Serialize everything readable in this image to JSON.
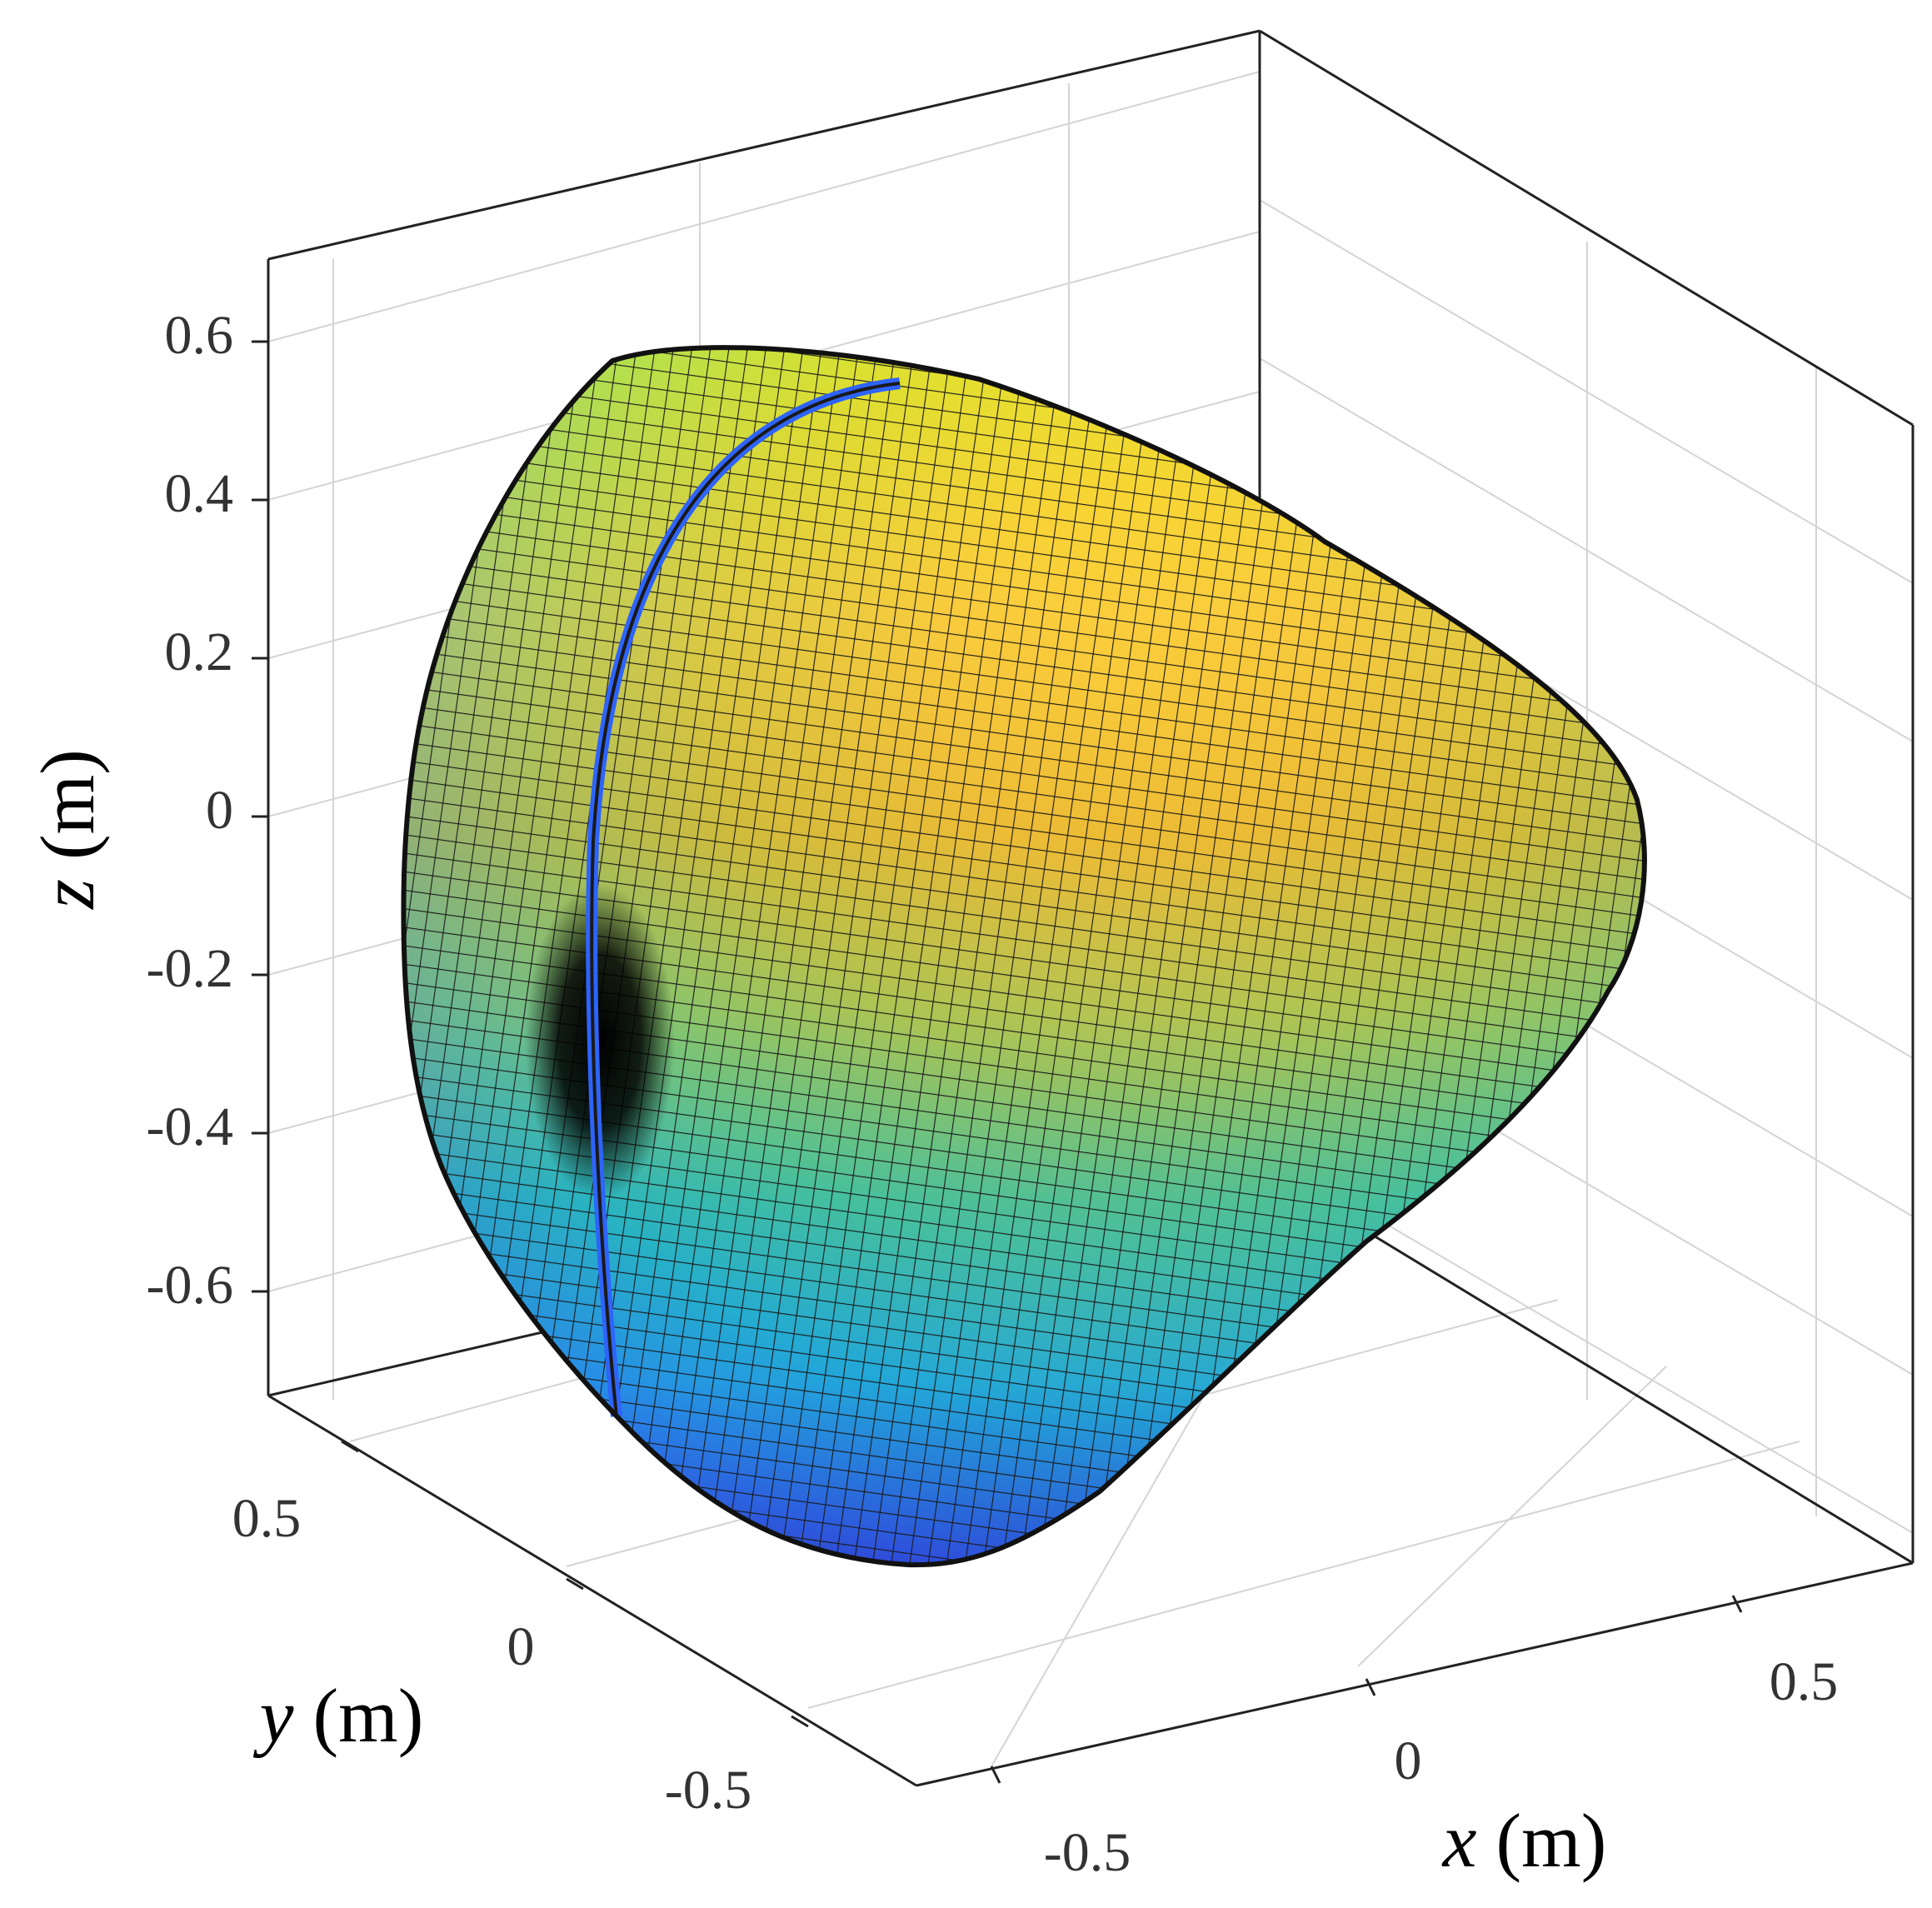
{
  "chart_data": {
    "type": "surface",
    "title": "",
    "colormap": "parula",
    "grid": true,
    "box": true,
    "xlabel": {
      "var": "x",
      "unit": " (m)"
    },
    "ylabel": {
      "var": "y",
      "unit": " (m)"
    },
    "zlabel": {
      "var": "z",
      "unit": " (m)"
    },
    "xticks": [
      "-0.5",
      "0",
      "0.5"
    ],
    "yticks": [
      "-0.5",
      "0",
      "0.5"
    ],
    "zticks": [
      "-0.6",
      "-0.4",
      "-0.2",
      "0",
      "0.2",
      "0.4",
      "0.6"
    ],
    "xlim": [
      -0.7,
      0.7
    ],
    "ylim": [
      -0.7,
      0.7
    ],
    "zlim": [
      -0.7,
      0.7
    ],
    "surface": {
      "description": "closed radiation-pattern-like surface, wider toward -x, nose toward +x",
      "zrange": [
        -0.58,
        0.6
      ]
    },
    "colors": {
      "parula_stops": [
        "#3e26a8",
        "#2e64fb",
        "#22a7d9",
        "#2fbeaa",
        "#85c65c",
        "#e6b62c",
        "#fccb3d",
        "#f9fb15"
      ]
    }
  }
}
